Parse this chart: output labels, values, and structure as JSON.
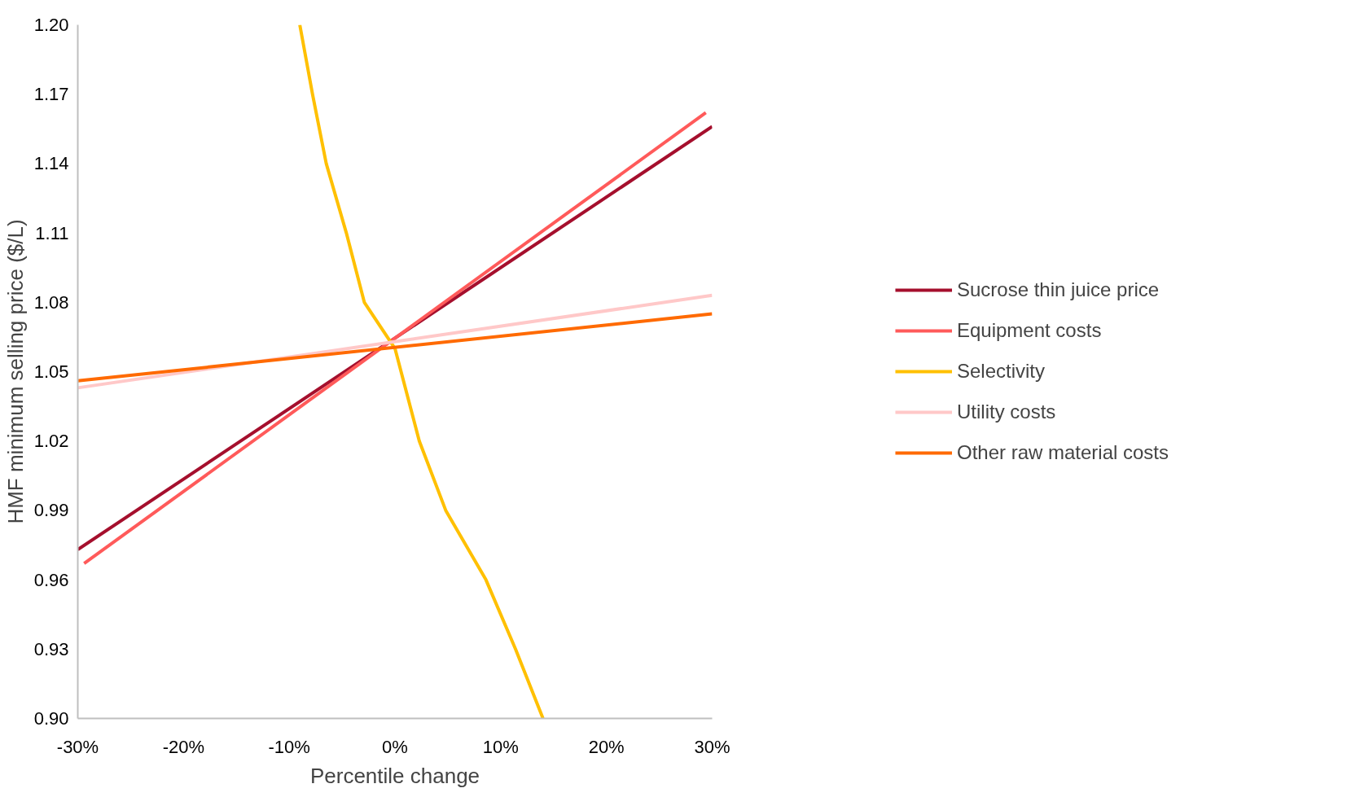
{
  "chart_data": {
    "type": "line",
    "xlabel": "Percentile change",
    "ylabel": "HMF minimum selling price ($/L)",
    "xlim": [
      -30,
      30
    ],
    "ylim": [
      0.9,
      1.2
    ],
    "xticks": [
      {
        "value": -30,
        "label": "-30%"
      },
      {
        "value": -20,
        "label": "-20%"
      },
      {
        "value": -10,
        "label": "-10%"
      },
      {
        "value": 0,
        "label": "0%"
      },
      {
        "value": 10,
        "label": "10%"
      },
      {
        "value": 20,
        "label": "20%"
      },
      {
        "value": 30,
        "label": "30%"
      }
    ],
    "yticks": [
      {
        "value": 0.9,
        "label": "0.90"
      },
      {
        "value": 0.93,
        "label": "0.93"
      },
      {
        "value": 0.96,
        "label": "0.96"
      },
      {
        "value": 0.99,
        "label": "0.99"
      },
      {
        "value": 1.02,
        "label": "1.02"
      },
      {
        "value": 1.05,
        "label": "1.05"
      },
      {
        "value": 1.08,
        "label": "1.08"
      },
      {
        "value": 1.11,
        "label": "1.11"
      },
      {
        "value": 1.14,
        "label": "1.14"
      },
      {
        "value": 1.17,
        "label": "1.17"
      },
      {
        "value": 1.2,
        "label": "1.20"
      }
    ],
    "grid": false,
    "legend": "right",
    "marker": "none",
    "line_style": "solid",
    "series": [
      {
        "name": "Sucrose thin juice price",
        "color": "#a50f2d",
        "x": [
          -30,
          30
        ],
        "values": [
          0.973,
          1.156
        ]
      },
      {
        "name": "Equipment costs",
        "color": "#ff5a5a",
        "x": [
          -29.4,
          29.4
        ],
        "values": [
          0.967,
          1.162
        ]
      },
      {
        "name": "Selectivity",
        "color": "#ffc000",
        "x": [
          -9.0,
          -7.8,
          -6.5,
          -4.6,
          -2.9,
          0,
          2.3,
          4.8,
          8.6,
          11.4,
          14.0
        ],
        "values": [
          1.2,
          1.17,
          1.14,
          1.11,
          1.08,
          1.06,
          1.02,
          0.99,
          0.96,
          0.93,
          0.9
        ]
      },
      {
        "name": "Utility costs",
        "color": "#ffc8c8",
        "x": [
          -30,
          30
        ],
        "values": [
          1.043,
          1.083
        ]
      },
      {
        "name": "Other raw material costs",
        "color": "#ff6a00",
        "x": [
          -30,
          30
        ],
        "values": [
          1.046,
          1.075
        ]
      }
    ]
  }
}
